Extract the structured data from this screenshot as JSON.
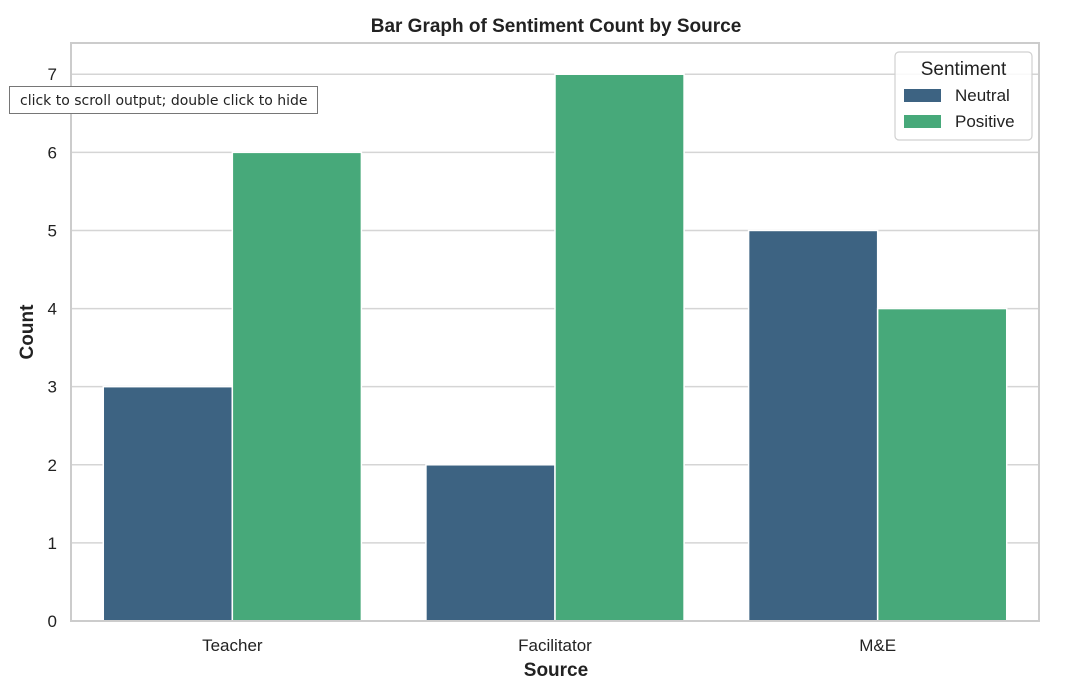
{
  "tooltip": {
    "text": "click to scroll output; double click to hide"
  },
  "colors": {
    "neutral": "#3d6382",
    "positive": "#47a97a",
    "grid": "#d5d5d5",
    "frame": "#cccccc",
    "text": "#222222"
  },
  "chart_data": {
    "type": "bar",
    "title": "Bar Graph of Sentiment Count by Source",
    "xlabel": "Source",
    "ylabel": "Count",
    "categories": [
      "Teacher",
      "Facilitator",
      "M&E"
    ],
    "series": [
      {
        "name": "Neutral",
        "values": [
          3,
          2,
          5
        ]
      },
      {
        "name": "Positive",
        "values": [
          6,
          7,
          4
        ]
      }
    ],
    "ylim": [
      0,
      7.4
    ],
    "yticks": [
      0,
      1,
      2,
      3,
      4,
      5,
      6,
      7
    ],
    "grid": true,
    "legend": {
      "title": "Sentiment",
      "placement": "top-right"
    }
  }
}
